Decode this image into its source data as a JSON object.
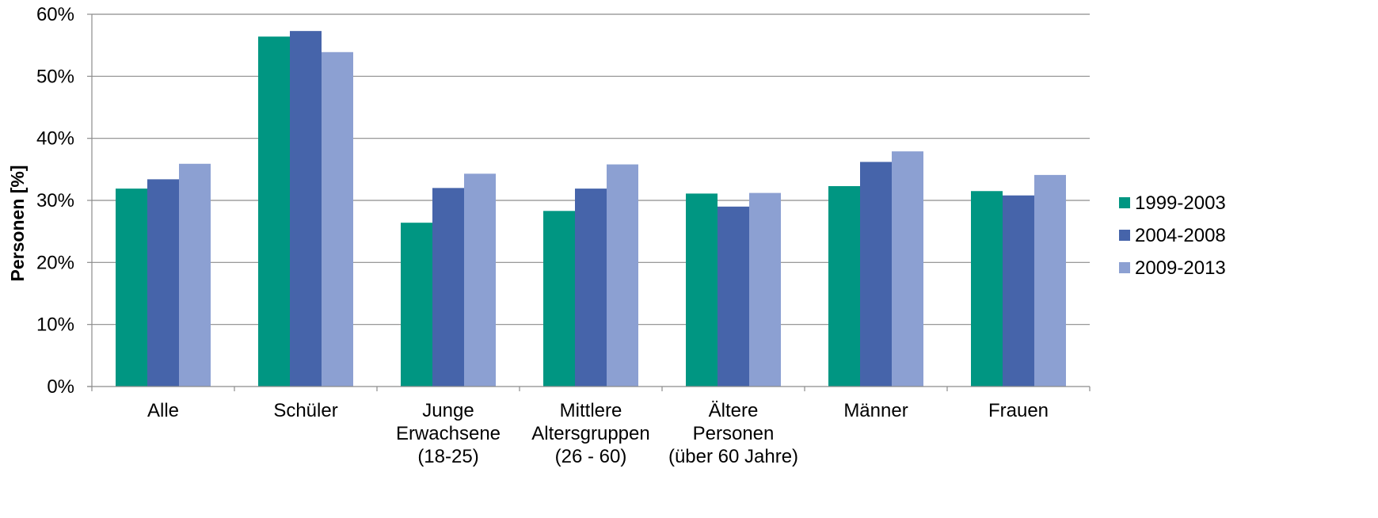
{
  "chart_data": {
    "type": "bar",
    "title": "",
    "xlabel": "",
    "ylabel": "Personen [%]",
    "ylim": [
      0,
      60
    ],
    "y_ticks": [
      0,
      10,
      20,
      30,
      40,
      50,
      60
    ],
    "y_tick_labels": [
      "0%",
      "10%",
      "20%",
      "30%",
      "40%",
      "50%",
      "60%"
    ],
    "grid": true,
    "legend_position": "right",
    "categories": [
      [
        "Alle"
      ],
      [
        "Schüler"
      ],
      [
        "Junge",
        "Erwachsene",
        "(18-25)"
      ],
      [
        "Mittlere",
        "Altersgruppen",
        "(26 - 60)"
      ],
      [
        "Ältere",
        "Personen",
        "(über 60 Jahre)"
      ],
      [
        "Männer"
      ],
      [
        "Frauen"
      ]
    ],
    "series": [
      {
        "name": "1999-2003",
        "color": "#009682",
        "values": [
          31.9,
          56.4,
          26.4,
          28.3,
          31.1,
          32.3,
          31.5
        ]
      },
      {
        "name": "2004-2008",
        "color": "#4664AA",
        "values": [
          33.4,
          57.3,
          32.0,
          31.9,
          29.0,
          36.2,
          30.8
        ]
      },
      {
        "name": "2009-2013",
        "color": "#8CA0D2",
        "values": [
          35.9,
          53.9,
          34.3,
          35.8,
          31.2,
          37.9,
          34.1
        ]
      }
    ]
  }
}
